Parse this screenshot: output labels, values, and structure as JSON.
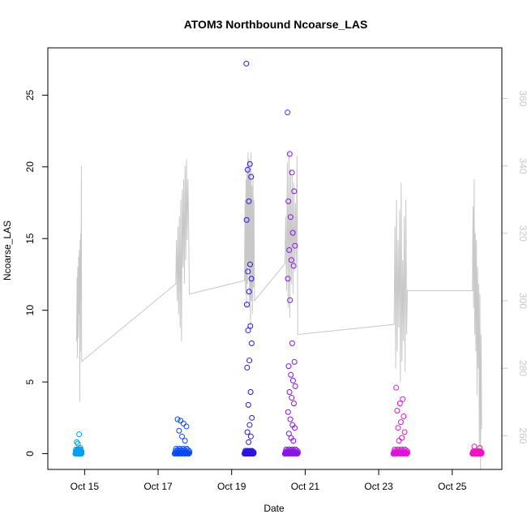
{
  "chart_data": {
    "type": "scatter",
    "title": "ATOM3 Northbound Ncoarse_LAS",
    "xlabel": "Date",
    "ylabel": "Ncoarse_LAS",
    "x_ticks": [
      "Oct 15",
      "Oct 17",
      "Oct 19",
      "Oct 21",
      "Oct 23",
      "Oct 25"
    ],
    "x_tick_days": [
      15,
      17,
      19,
      21,
      23,
      25
    ],
    "xlim_days": [
      14.0,
      26.35
    ],
    "ylim": [
      -1.1,
      28.3
    ],
    "y_ticks": [
      0,
      5,
      10,
      15,
      20,
      25
    ],
    "y2lim": [
      250,
      375
    ],
    "y2_ticks": [
      260,
      280,
      300,
      320,
      340,
      360
    ],
    "grid": false,
    "legend": "none",
    "colors": {
      "line": "#c8c8c8",
      "right_axis": "#c8c8c8",
      "series": [
        "#00a0f0",
        "#0a48f0",
        "#2a14e6",
        "#8a14e6",
        "#de14d6",
        "#f014c0"
      ]
    },
    "point_series": [
      {
        "range_days": [
          14.75,
          14.92
        ],
        "dense_top": 0.6,
        "outliers": [
          0.8,
          0.7,
          1.35,
          0.4
        ]
      },
      {
        "range_days": [
          17.45,
          17.85
        ],
        "dense_top": 0.7,
        "outliers": [
          2.4,
          2.3,
          2.1,
          1.9,
          1.6,
          1.2,
          0.9
        ]
      },
      {
        "range_days": [
          19.35,
          19.6
        ],
        "dense_top": 0.4,
        "outliers": [
          27.2,
          20.2,
          19.8,
          19.3,
          17.6,
          16.3,
          13.2,
          12.7,
          12.2,
          11.3,
          10.4,
          8.9,
          8.6,
          7.7,
          6.5,
          6.0,
          4.3,
          3.4,
          2.5,
          2.0,
          1.5,
          1.2,
          0.8
        ]
      },
      {
        "range_days": [
          20.45,
          20.8
        ],
        "dense_top": 0.6,
        "outliers": [
          23.8,
          20.9,
          19.6,
          18.3,
          17.6,
          16.5,
          15.4,
          14.5,
          14.2,
          13.5,
          13.1,
          12.2,
          10.7,
          7.7,
          6.4,
          6.1,
          5.5,
          5.1,
          4.7,
          4.3,
          3.9,
          3.5,
          2.9,
          2.4,
          2.0,
          1.8,
          1.4,
          1.1,
          0.9
        ]
      },
      {
        "range_days": [
          23.4,
          23.78
        ],
        "dense_top": 0.6,
        "outliers": [
          4.6,
          3.8,
          3.5,
          3.0,
          2.6,
          2.2,
          1.8,
          1.5,
          1.1,
          0.9
        ]
      },
      {
        "range_days": [
          25.55,
          25.8
        ],
        "dense_top": 0.35,
        "outliers": [
          0.5,
          0.4
        ]
      }
    ],
    "line_series": {
      "axis": "right",
      "segments": [
        {
          "range_days": [
            14.78,
            14.92
          ],
          "values": [
            288,
            298,
            307,
            283,
            310,
            289,
            300,
            313,
            296,
            315,
            290,
            270,
            318,
            285,
            320,
            300,
            340,
            282
          ]
        },
        {
          "range_days": [
            17.48,
            17.85
          ],
          "values": [
            305,
            318,
            300,
            322,
            296,
            325,
            292,
            330,
            288,
            333,
            310,
            336,
            305,
            340,
            312,
            342,
            318,
            336,
            322,
            302
          ]
        },
        {
          "range_days": [
            19.35,
            19.62
          ],
          "values": [
            306,
            330,
            302,
            336,
            298,
            340,
            305,
            344,
            310,
            342,
            298,
            338,
            292,
            344,
            300,
            334,
            296,
            338,
            304,
            330,
            300
          ]
        },
        {
          "range_days": [
            20.45,
            20.8
          ],
          "values": [
            311,
            325,
            303,
            341,
            298,
            344,
            295,
            339,
            305,
            337,
            302,
            335,
            309,
            329,
            311,
            343,
            290
          ]
        },
        {
          "range_days": [
            23.42,
            23.78
          ],
          "values": [
            293,
            322,
            280,
            330,
            285,
            318,
            292,
            327,
            276,
            335,
            282,
            312,
            288,
            325,
            279,
            330,
            290,
            303
          ]
        },
        {
          "range_days": [
            25.55,
            25.8
          ],
          "values": [
            303,
            328,
            298,
            336,
            290,
            320,
            285,
            318,
            272,
            310,
            280,
            305,
            255,
            302,
            250,
            290,
            262
          ]
        }
      ]
    }
  }
}
